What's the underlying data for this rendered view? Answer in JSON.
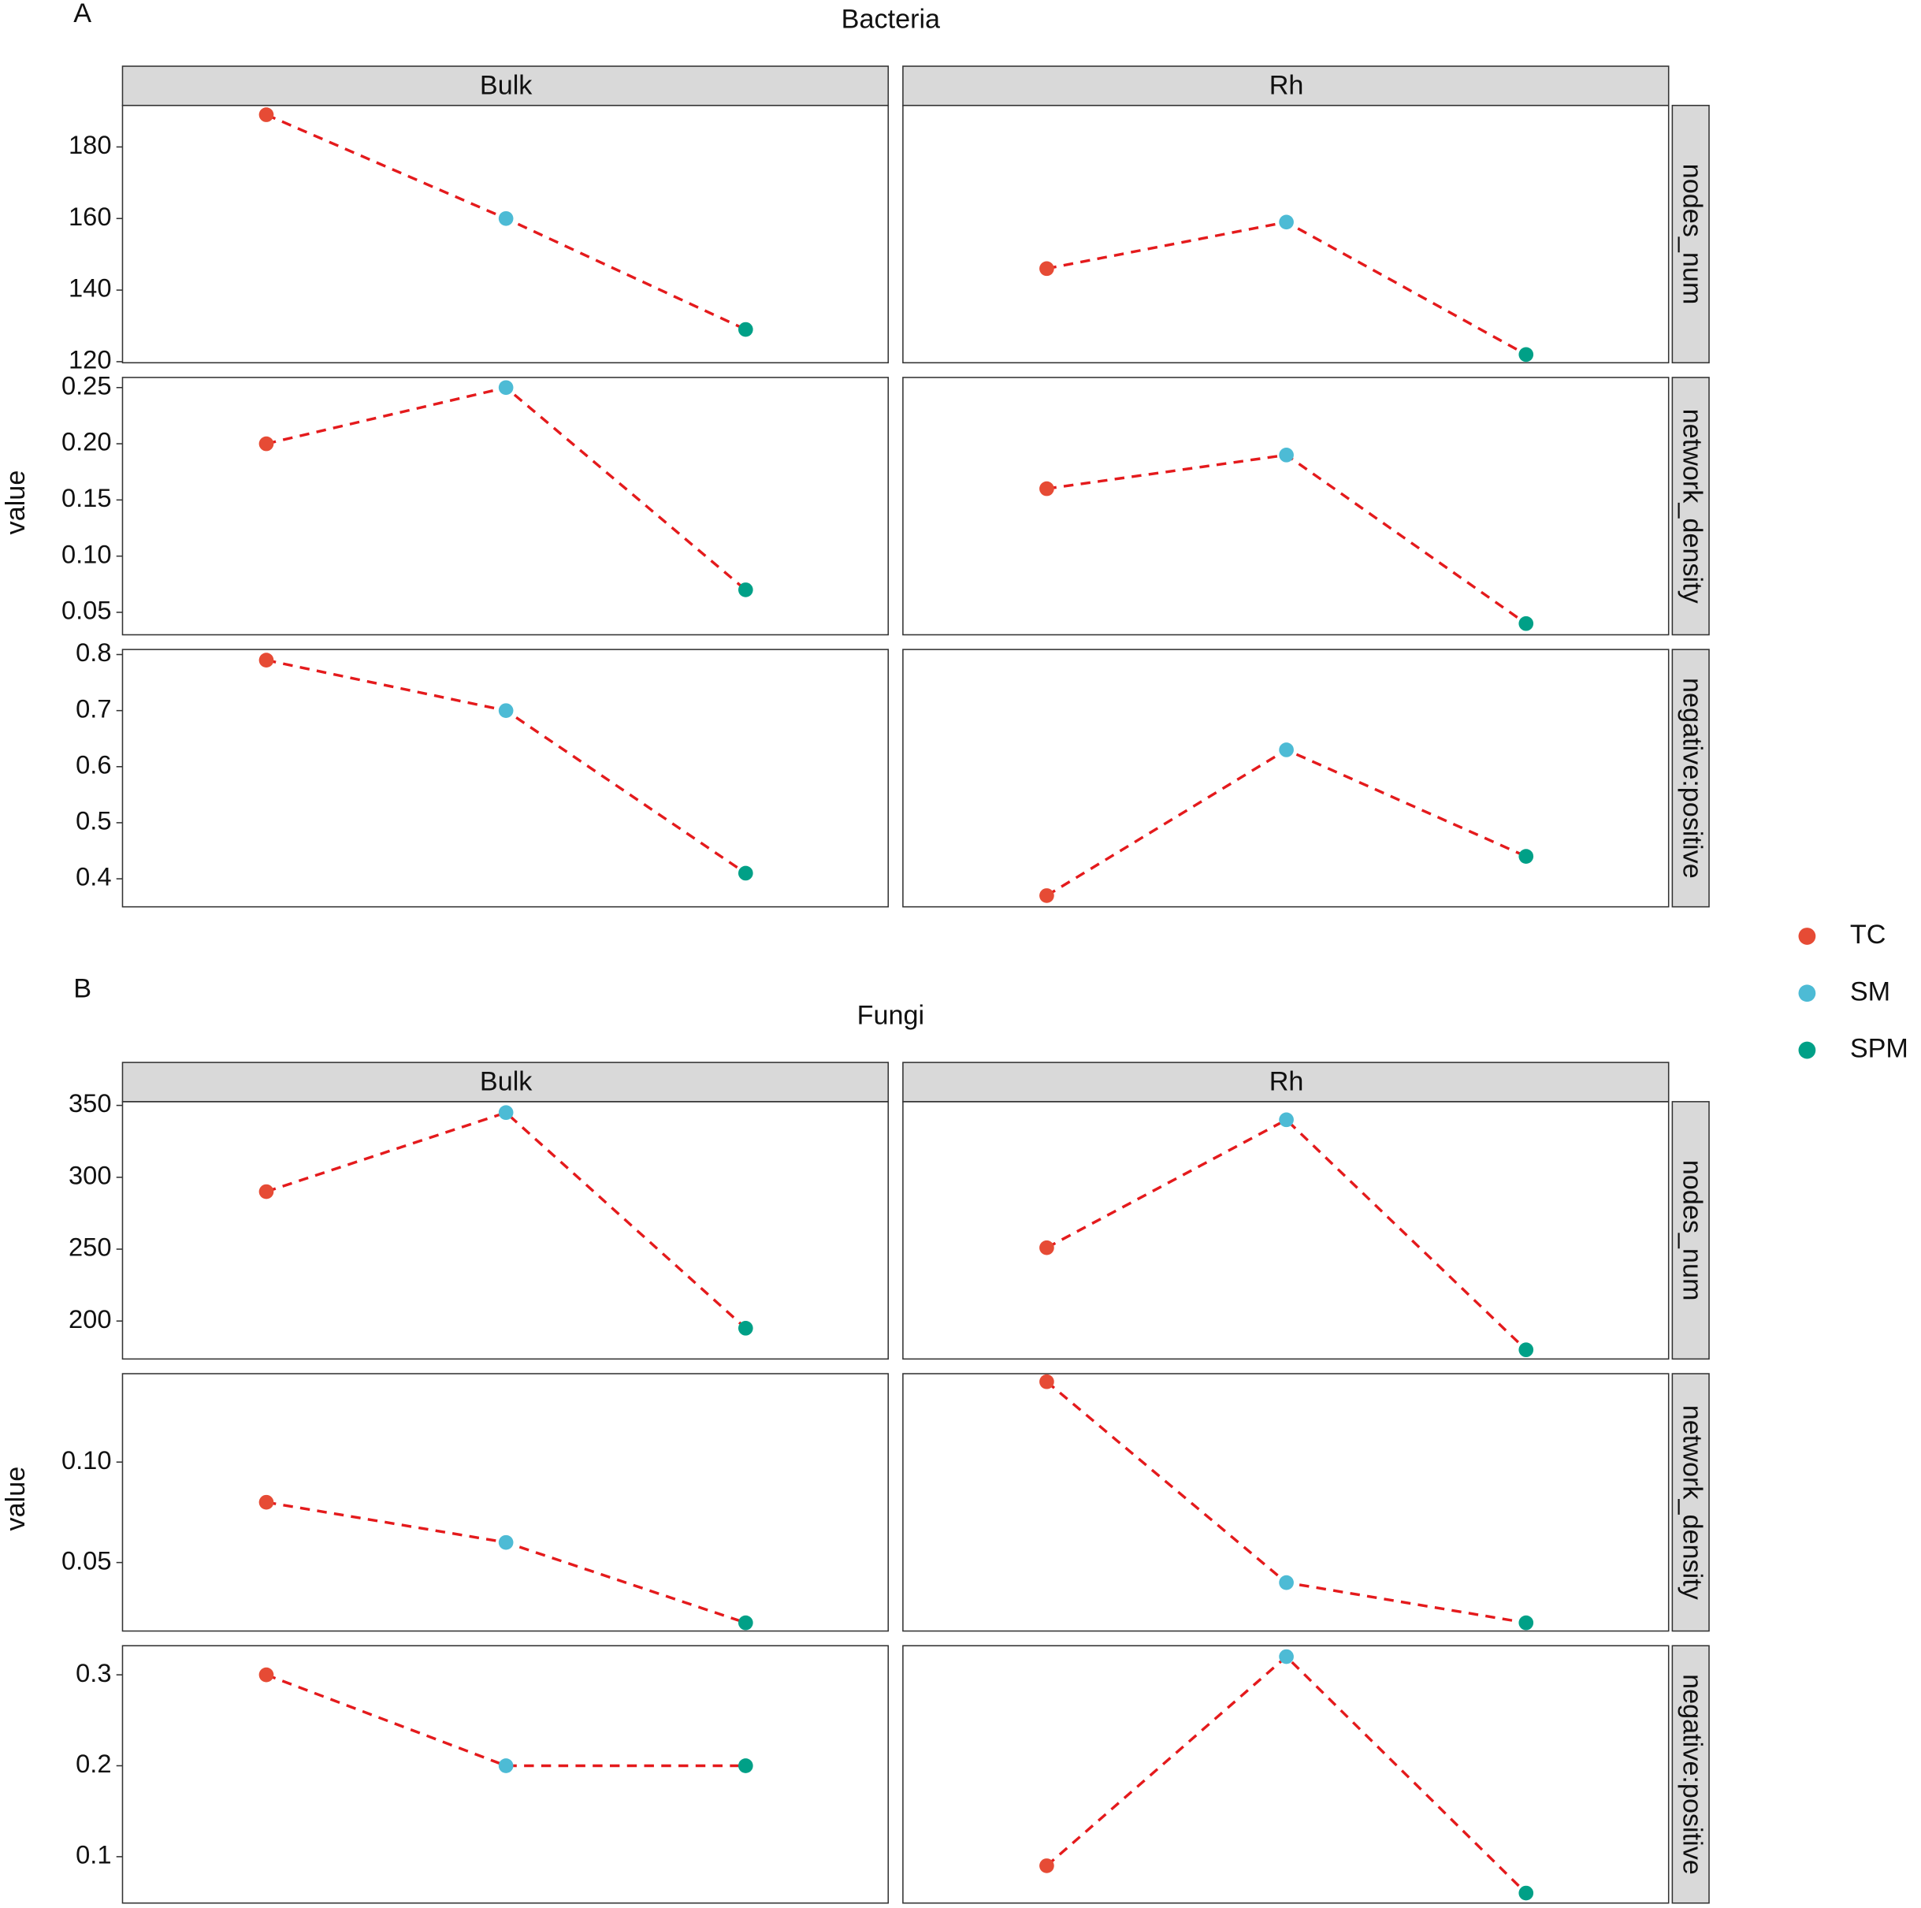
{
  "chart_data": [
    {
      "type": "line",
      "panel_label": "A",
      "title": "Bacteria",
      "y_label": "value",
      "columns": [
        "Bulk",
        "Rh"
      ],
      "line_color": "#e41a1c",
      "line_style": "dashed",
      "rows": [
        {
          "name": "nodes_num",
          "ylim": [
            119.7,
            191.6
          ],
          "yticks": [
            120,
            140,
            160,
            180
          ],
          "values": [
            [
              189,
              160,
              129
            ],
            [
              146,
              159,
              122
            ]
          ]
        },
        {
          "name": "network_density",
          "ylim": [
            0.03,
            0.259
          ],
          "yticks": [
            0.05,
            {
              "value": 0.1,
              "label": "0.10"
            },
            0.15,
            {
              "value": 0.2,
              "label": "0.20"
            },
            0.25
          ],
          "values": [
            [
              0.2,
              0.25,
              0.07
            ],
            [
              0.16,
              0.19,
              0.04
            ]
          ]
        },
        {
          "name": "negative:positive",
          "ylim": [
            0.35,
            0.809
          ],
          "yticks": [
            0.4,
            0.5,
            0.6,
            0.7,
            0.8
          ],
          "values": [
            [
              0.79,
              0.7,
              0.41
            ],
            [
              0.37,
              0.63,
              0.44
            ]
          ]
        }
      ]
    },
    {
      "type": "line",
      "panel_label": "B",
      "title": "Fungi",
      "y_label": "value",
      "columns": [
        "Bulk",
        "Rh"
      ],
      "line_color": "#e41a1c",
      "line_style": "dashed",
      "rows": [
        {
          "name": "nodes_num",
          "ylim": [
            173.6,
            352.6
          ],
          "yticks": [
            200,
            250,
            300,
            350
          ],
          "values": [
            [
              290,
              345,
              195
            ],
            [
              251,
              340,
              180
            ]
          ]
        },
        {
          "name": "network_density",
          "ylim": [
            0.0159,
            0.144
          ],
          "yticks": [
            0.05,
            {
              "value": 0.1,
              "label": "0.10"
            }
          ],
          "values": [
            [
              0.08,
              0.06,
              0.02
            ],
            [
              0.14,
              0.04,
              0.02
            ]
          ]
        },
        {
          "name": "negative:positive",
          "ylim": [
            0.049,
            0.332
          ],
          "yticks": [
            0.1,
            0.2,
            0.3
          ],
          "values": [
            [
              0.3,
              0.2,
              0.2
            ],
            [
              0.09,
              0.32,
              0.06
            ]
          ]
        }
      ]
    }
  ],
  "legend": {
    "names": [
      "TC",
      "SM",
      "SPM"
    ],
    "colors": [
      "#e64b35",
      "#4dbbd5",
      "#00a087"
    ],
    "position": "right"
  }
}
